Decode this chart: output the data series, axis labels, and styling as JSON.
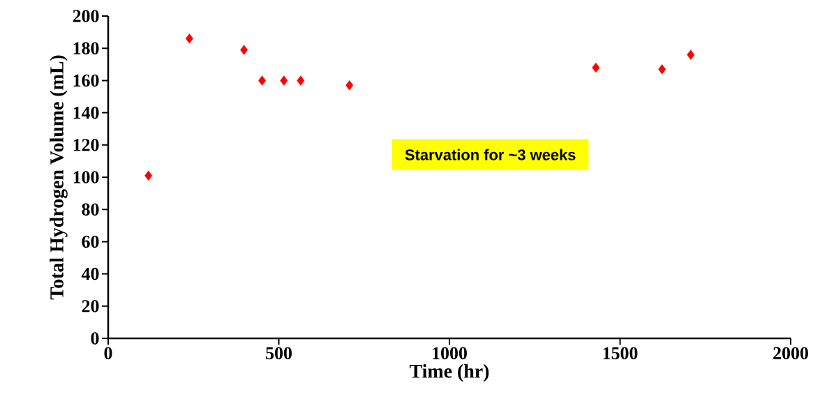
{
  "chart_data": {
    "type": "scatter",
    "xlabel": "Time (hr)",
    "ylabel": "Total Hydrogen Volume (mL)",
    "x": [
      118,
      238,
      398,
      451,
      515,
      564,
      707,
      1429,
      1623,
      1707
    ],
    "values": [
      101,
      186,
      179,
      160,
      160,
      160,
      157,
      168,
      167,
      176
    ],
    "color": "#ff0000",
    "marker": "diamond",
    "xlim": [
      0,
      2000
    ],
    "xticks": [
      0,
      500,
      1000,
      1500,
      2000
    ],
    "ylim": [
      0,
      200
    ],
    "yticks": [
      0,
      20,
      40,
      60,
      80,
      100,
      120,
      140,
      160,
      180,
      200
    ],
    "annotations": [
      "Starvation for ~3 weeks"
    ]
  }
}
